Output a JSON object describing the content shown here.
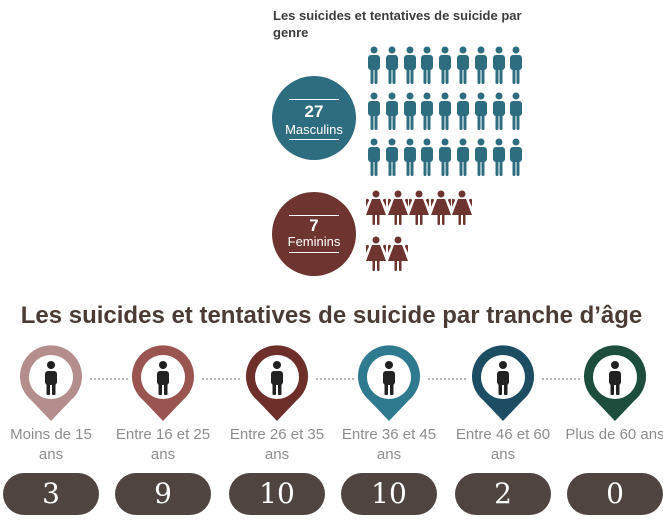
{
  "gender": {
    "title": "Les suicides et tentatives de suicide par genre",
    "male": {
      "count": "27",
      "label": "Masculins",
      "color": "#2e6d80",
      "icon": "male-person-icon"
    },
    "female": {
      "count": "7",
      "label": "Feminins",
      "color": "#6e3530",
      "icon": "female-person-icon"
    }
  },
  "age": {
    "title": "Les suicides et tentatives de suicide par tranche d’âge",
    "groups": [
      {
        "label": "Moins de 15 ans",
        "count": "3",
        "color": "#b48e8c",
        "icon": "child-icon"
      },
      {
        "label": "Entre 16 et 25 ans",
        "count": "9",
        "color": "#9b5551",
        "icon": "teen-icon"
      },
      {
        "label": "Entre 26 et 35 ans",
        "count": "10",
        "color": "#6e2f2b",
        "icon": "businessman-icon"
      },
      {
        "label": "Entre 36 et 45 ans",
        "count": "10",
        "color": "#2f7a8e",
        "icon": "businessman-icon"
      },
      {
        "label": "Entre 46 et 60 ans",
        "count": "2",
        "color": "#1d4d63",
        "icon": "adult-icon"
      },
      {
        "label": "Plus de 60 ans",
        "count": "0",
        "color": "#1d4d3c",
        "icon": "elderly-cane-icon"
      }
    ]
  }
}
